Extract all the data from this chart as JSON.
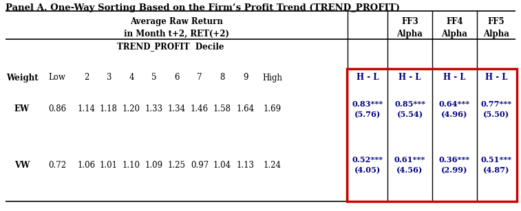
{
  "title": "Panel A. One-Way Sorting Based on the Firm’s Profit Trend (TREND_PROFIT)",
  "avg_header": "Average Raw Return\nin Month t+2, RET(+2)",
  "ff_headers": [
    "FF3\nAlpha",
    "FF4\nAlpha",
    "FF5\nAlpha"
  ],
  "subheader": "TREND_PROFIT  Decile",
  "col_labels": [
    "Weight",
    "Low",
    "2",
    "3",
    "4",
    "5",
    "6",
    "7",
    "8",
    "9",
    "High",
    "H - L",
    "H - L",
    "H - L",
    "H - L"
  ],
  "ew_values": [
    "EW",
    "0.86",
    "1.14",
    "1.18",
    "1.20",
    "1.33",
    "1.34",
    "1.46",
    "1.58",
    "1.64",
    "1.69"
  ],
  "ew_hl": [
    "0.83***\n(5.76)",
    "0.85***\n(5.54)",
    "0.64***\n(4.96)",
    "0.77***\n(5.50)"
  ],
  "vw_values": [
    "VW",
    "0.72",
    "1.06",
    "1.01",
    "1.10",
    "1.09",
    "1.25",
    "0.97",
    "1.04",
    "1.13",
    "1.24"
  ],
  "vw_hl": [
    "0.52***\n(4.05)",
    "0.61***\n(4.56)",
    "0.36***\n(2.99)",
    "0.51***\n(4.87)"
  ],
  "highlight_color": "#cc0000",
  "navy": "#000080",
  "black": "#000000",
  "font_family": "serif",
  "fig_width": 7.57,
  "fig_height": 3.07,
  "dpi": 100
}
